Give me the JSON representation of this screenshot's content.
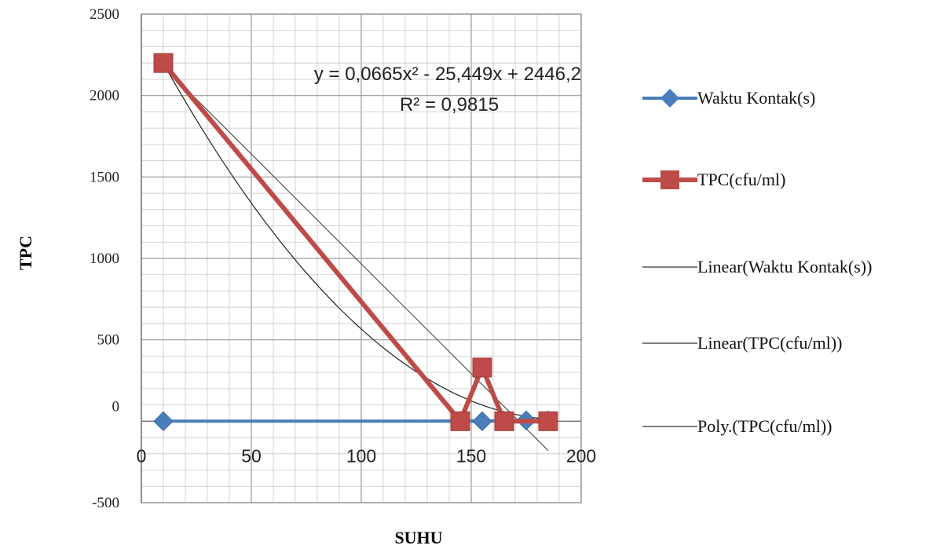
{
  "chart_data": {
    "type": "line",
    "title": "",
    "xlabel": "SUHU",
    "ylabel": "TPC",
    "xlim": [
      0,
      200
    ],
    "ylim": [
      -500,
      2500
    ],
    "x_ticks": [
      "0",
      "50",
      "100",
      "150",
      "200"
    ],
    "y_ticks": [
      "-500",
      "0",
      "500",
      "1000",
      "1500",
      "2000",
      "2500"
    ],
    "grid": true,
    "legend_position": "right",
    "series": [
      {
        "name": "Waktu Kontak(s)",
        "marker": "diamond",
        "color": "#4a7ebb",
        "x": [
          10,
          145,
          155,
          175,
          185
        ],
        "y": [
          0,
          0,
          0,
          5,
          5
        ]
      },
      {
        "name": "TPC(cfu/ml)",
        "marker": "square",
        "color": "#be4b48",
        "x": [
          10,
          145,
          155,
          165,
          185
        ],
        "y": [
          2200,
          0,
          330,
          0,
          0
        ]
      }
    ],
    "trendlines": [
      {
        "name": "Linear(Waktu Kontak(s))",
        "kind": "linear",
        "color": "#333333",
        "x": [
          10,
          185
        ],
        "y": [
          0,
          10
        ]
      },
      {
        "name": "Linear(TPC(cfu/ml))",
        "kind": "linear",
        "color": "#555555",
        "x": [
          10,
          185
        ],
        "y": [
          2180,
          -180
        ]
      },
      {
        "name": "Poly.(TPC(cfu/ml))",
        "kind": "poly2",
        "color": "#222222",
        "coefficients": [
          0.0665,
          -25.449,
          2446.2
        ],
        "x_range": [
          10,
          185
        ]
      }
    ],
    "annotations": {
      "equation": "y = 0,0665x² - 25,449x + 2446,2",
      "r_squared": "R² = 0,9815"
    }
  }
}
